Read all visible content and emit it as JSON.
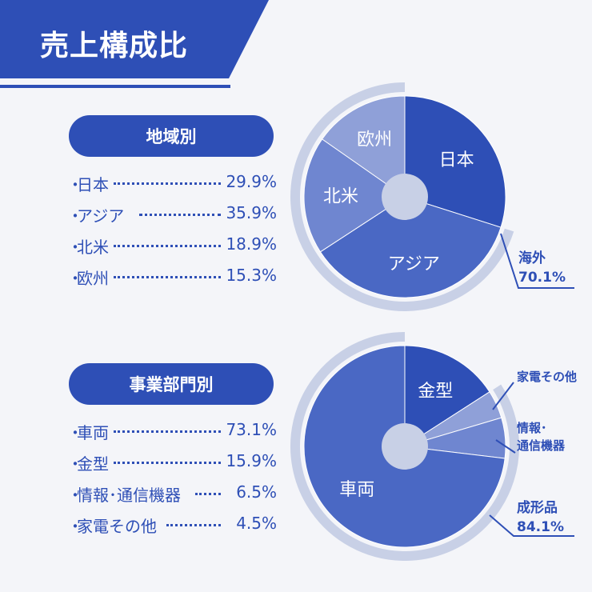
{
  "title": "売上構成比",
  "colors": {
    "dark": "#2e4fb6",
    "mid": "#4a68c4",
    "light": "#6f86d0",
    "lighter": "#8fa0d8",
    "ring": "#c8d0e6",
    "bg": "#f4f5f9"
  },
  "charts": [
    {
      "heading": "地域別",
      "list": [
        {
          "label": "日本",
          "value": "29.9%"
        },
        {
          "label": "アジア",
          "value": "35.9%"
        },
        {
          "label": "北米",
          "value": "18.9%"
        },
        {
          "label": "欧州",
          "value": "15.3%"
        }
      ],
      "callout": {
        "line1": "海外",
        "line2": "70.1%"
      }
    },
    {
      "heading": "事業部門別",
      "list": [
        {
          "label": "車両",
          "value": "73.1%"
        },
        {
          "label": "金型",
          "value": "15.9%"
        },
        {
          "label": "情報･通信機器",
          "value": "6.5%"
        },
        {
          "label": "家電その他",
          "value": "4.5%"
        }
      ],
      "callout": {
        "line1": "成形品",
        "line2": "84.1%"
      },
      "outer_labels": {
        "kaden": "家電その他",
        "joho_line1": "情報･",
        "joho_line2": "通信機器"
      }
    }
  ],
  "chart_data": [
    {
      "type": "pie",
      "title": "地域別",
      "categories": [
        "日本",
        "アジア",
        "北米",
        "欧州"
      ],
      "values": [
        29.9,
        35.9,
        18.9,
        15.3
      ],
      "unit": "%",
      "group_label": "海外",
      "group_value": 70.1
    },
    {
      "type": "pie",
      "title": "事業部門別",
      "categories": [
        "車両",
        "金型",
        "情報･通信機器",
        "家電その他"
      ],
      "values": [
        73.1,
        15.9,
        6.5,
        4.5
      ],
      "unit": "%",
      "group_label": "成形品",
      "group_value": 84.1
    }
  ]
}
